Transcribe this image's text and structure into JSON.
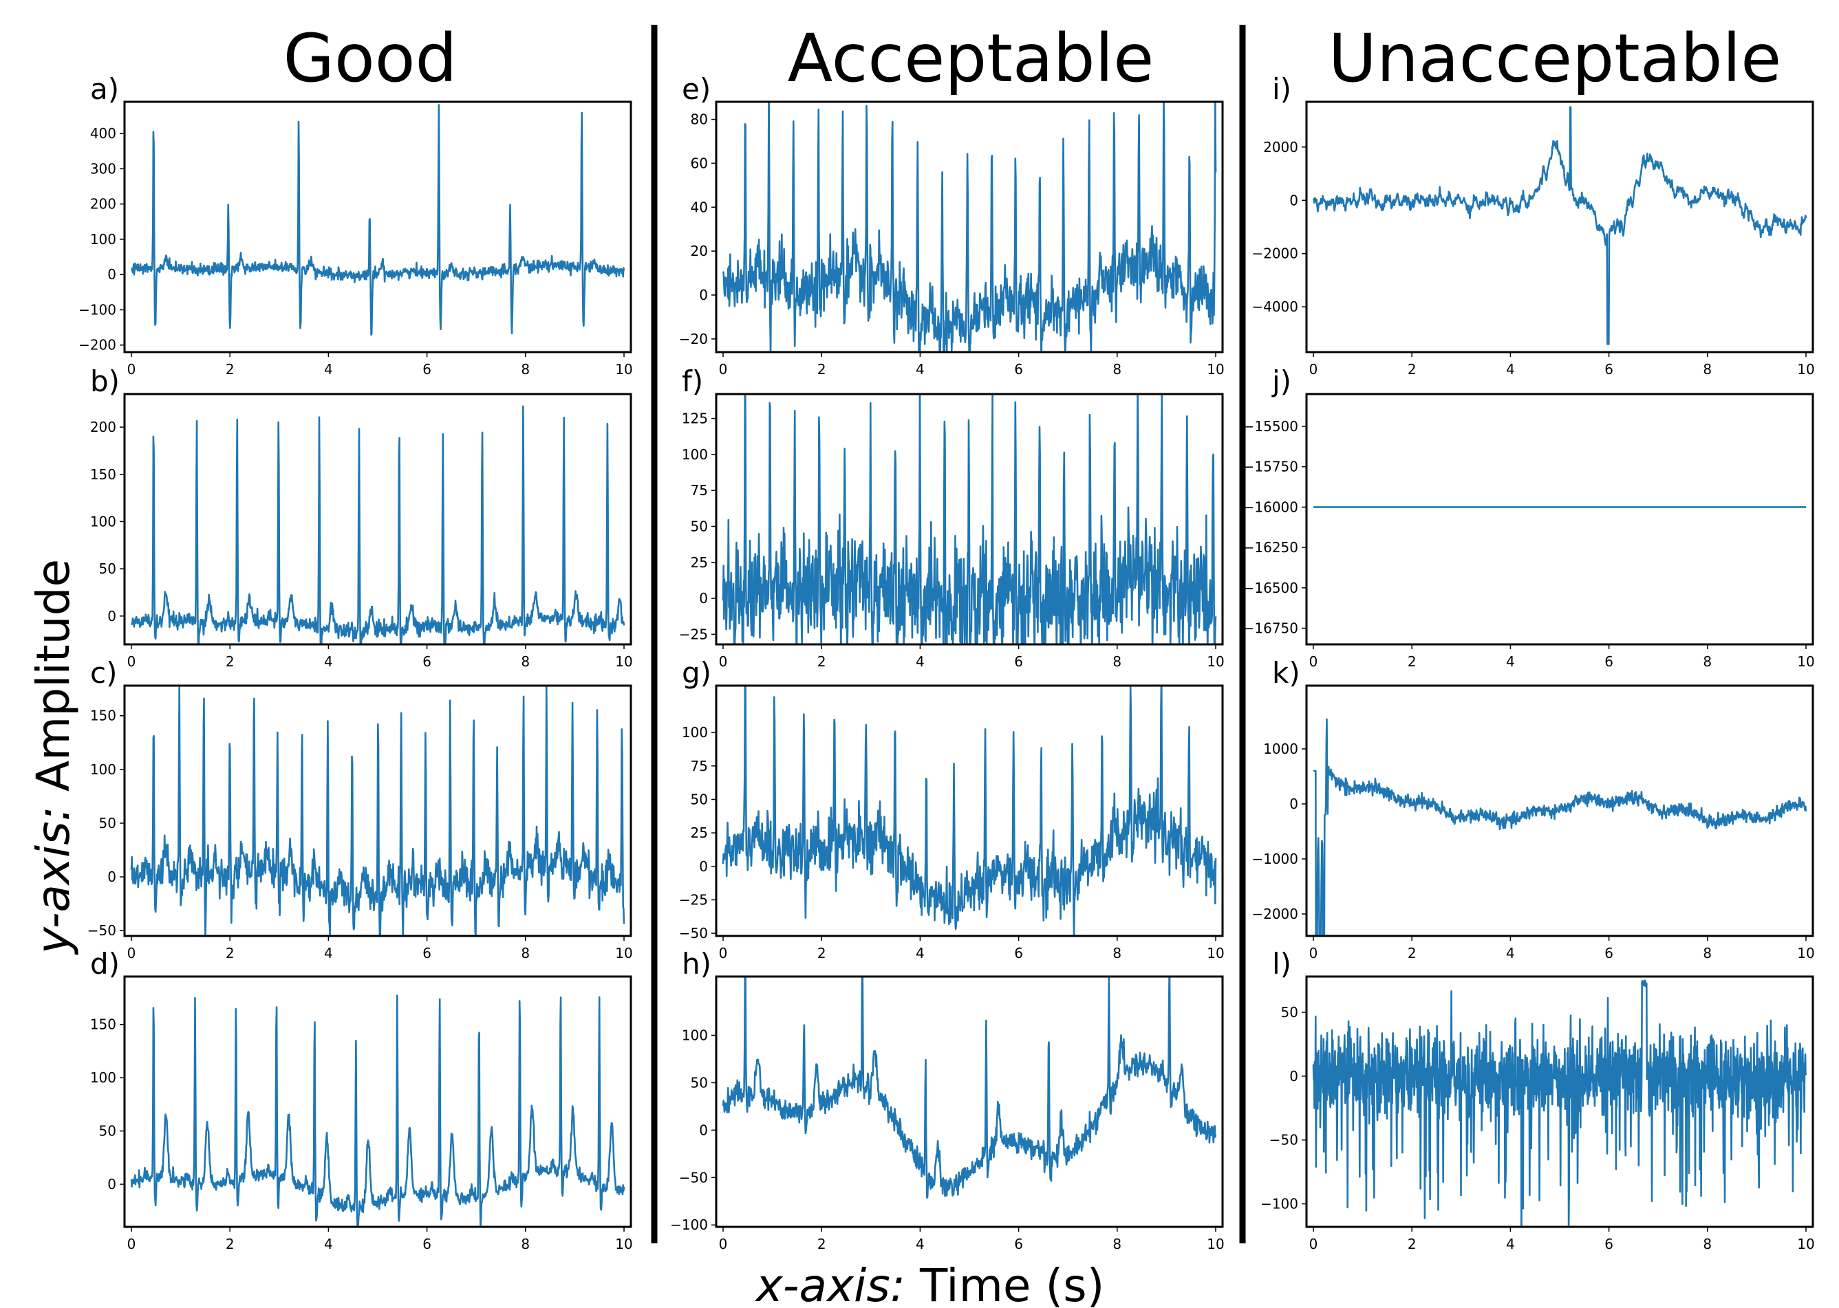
{
  "figure": {
    "column_titles": [
      "Good",
      "Acceptable",
      "Unacceptable"
    ],
    "ylabel_italic": "y-axis:",
    "ylabel_rest": "Amplitude",
    "xlabel_italic": "x-axis:",
    "xlabel_rest": "Time (s)",
    "line_color": "#1f77b4"
  },
  "chart_data": [
    {
      "panel": "a)",
      "type": "line",
      "column": "Good",
      "xlim": [
        0,
        10
      ],
      "ylim": [
        -220,
        490
      ],
      "yticks": [
        -200,
        -100,
        0,
        100,
        200,
        300,
        400
      ],
      "xticks": [
        0,
        2,
        4,
        6,
        8,
        10
      ],
      "signal": "ecg",
      "signal_params": {
        "hr": 42,
        "r": [
          430,
          180,
          430,
          190,
          480,
          190,
          470,
          180,
          450,
          160,
          460,
          180,
          450
        ],
        "noise": 8,
        "wander": 10,
        "s_depth": -170,
        "offset": 10,
        "t_amp": 25
      }
    },
    {
      "panel": "b)",
      "type": "line",
      "column": "Good",
      "xlim": [
        0,
        10
      ],
      "ylim": [
        -30,
        235
      ],
      "yticks": [
        0,
        50,
        100,
        150,
        200
      ],
      "xticks": [
        0,
        2,
        4,
        6,
        8,
        10
      ],
      "signal": "ecg",
      "signal_params": {
        "hr": 72,
        "r": [
          220,
          213,
          222,
          225,
          230,
          213,
          220,
          213,
          223,
          225,
          213
        ],
        "noise": 4,
        "wander": 5,
        "s_depth": -20,
        "offset": -10,
        "t_amp": 25
      }
    },
    {
      "panel": "c)",
      "type": "line",
      "column": "Good",
      "xlim": [
        0,
        10
      ],
      "ylim": [
        -55,
        178
      ],
      "yticks": [
        -50,
        0,
        50,
        100,
        150
      ],
      "xticks": [
        0,
        2,
        4,
        6,
        8,
        10
      ],
      "signal": "ecg",
      "signal_params": {
        "hr": 120,
        "r": [
          152,
          175,
          170,
          130,
          170,
          125,
          155,
          175,
          150,
          175,
          165,
          150,
          175,
          170,
          130,
          175,
          165,
          160,
          170,
          150
        ],
        "noise": 8,
        "wander": 10,
        "s_depth": -35,
        "offset": -5,
        "t_amp": 20
      }
    },
    {
      "panel": "d)",
      "type": "line",
      "column": "Good",
      "xlim": [
        0,
        10
      ],
      "ylim": [
        -40,
        195
      ],
      "yticks": [
        0,
        50,
        100,
        150
      ],
      "xticks": [
        0,
        2,
        4,
        6,
        8,
        10
      ],
      "signal": "ecg",
      "signal_params": {
        "hr": 74,
        "r": [
          175,
          178,
          172,
          175,
          175,
          155,
          190,
          192,
          178,
          175,
          172,
          172,
          175
        ],
        "noise": 3,
        "wander": 12,
        "s_depth": -25,
        "offset": -5,
        "t_amp": 60
      }
    },
    {
      "panel": "e)",
      "type": "line",
      "column": "Acceptable",
      "xlim": [
        0,
        10
      ],
      "ylim": [
        -26,
        88
      ],
      "yticks": [
        -20,
        0,
        20,
        40,
        60,
        80
      ],
      "xticks": [
        0,
        2,
        4,
        6,
        8,
        10
      ],
      "signal": "ecg",
      "signal_params": {
        "hr": 120,
        "r": [
          82,
          80,
          78,
          76,
          75,
          78,
          80,
          76,
          74,
          78,
          80,
          76,
          75,
          78,
          80,
          74,
          76,
          80,
          76,
          80
        ],
        "noise": 6,
        "wander": 10,
        "s_depth": -18,
        "offset": -2,
        "t_amp": 8
      }
    },
    {
      "panel": "f)",
      "type": "line",
      "column": "Acceptable",
      "xlim": [
        0,
        10
      ],
      "ylim": [
        -32,
        142
      ],
      "yticks": [
        -25,
        0,
        25,
        50,
        75,
        100,
        125
      ],
      "xticks": [
        0,
        2,
        4,
        6,
        8,
        10
      ],
      "signal": "ecg",
      "signal_params": {
        "hr": 120,
        "r": [
          130,
          125,
          128,
          135,
          120,
          130,
          135,
          122,
          125,
          130,
          128,
          120,
          125,
          130,
          125,
          120,
          125,
          130,
          128,
          125
        ],
        "noise": 18,
        "wander": 6,
        "s_depth": -25,
        "offset": 0,
        "t_amp": 15
      }
    },
    {
      "panel": "g)",
      "type": "line",
      "column": "Acceptable",
      "xlim": [
        0,
        10
      ],
      "ylim": [
        -52,
        135
      ],
      "yticks": [
        -50,
        -25,
        0,
        25,
        50,
        75,
        100
      ],
      "xticks": [
        0,
        2,
        4,
        6,
        8,
        10
      ],
      "signal": "ecg",
      "signal_params": {
        "hr": 100,
        "r": [
          130,
          118,
          110,
          115,
          110,
          120,
          110,
          112,
          115,
          110,
          112,
          100,
          110,
          105,
          115,
          110,
          95,
          100,
          90,
          80
        ],
        "noise": 10,
        "wander": 20,
        "s_depth": -20,
        "offset": 0,
        "t_amp": 10
      }
    },
    {
      "panel": "h)",
      "type": "line",
      "column": "Acceptable",
      "xlim": [
        0,
        10
      ],
      "ylim": [
        -102,
        162
      ],
      "yticks": [
        -100,
        -50,
        0,
        50,
        100
      ],
      "xticks": [
        0,
        2,
        4,
        6,
        8,
        10
      ],
      "signal": "ecg",
      "signal_params": {
        "hr": 50,
        "r": [
          140,
          110,
          145,
          120,
          140,
          135,
          125,
          135,
          150,
          145,
          120
        ],
        "noise": 6,
        "wander": 45,
        "s_depth": -20,
        "offset": 0,
        "t_amp": 40
      }
    },
    {
      "panel": "i)",
      "type": "line",
      "column": "Unacceptable",
      "xlim": [
        0,
        10
      ],
      "ylim": [
        -5700,
        3700
      ],
      "yticks": [
        -4000,
        -2000,
        0,
        2000
      ],
      "xticks": [
        0,
        2,
        4,
        6,
        8,
        10
      ],
      "signal": "noisy_i"
    },
    {
      "panel": "j)",
      "type": "line",
      "column": "Unacceptable",
      "xlim": [
        0,
        10
      ],
      "ylim": [
        -16850,
        -15300
      ],
      "yticks": [
        -16750,
        -16500,
        -16250,
        -16000,
        -15750,
        -15500
      ],
      "xticks": [
        0,
        2,
        4,
        6,
        8,
        10
      ],
      "signal": "flat",
      "flat_value": -16000
    },
    {
      "panel": "k)",
      "type": "line",
      "column": "Unacceptable",
      "xlim": [
        0,
        10
      ],
      "ylim": [
        -2400,
        2150
      ],
      "yticks": [
        -2000,
        -1000,
        0,
        1000
      ],
      "xticks": [
        0,
        2,
        4,
        6,
        8,
        10
      ],
      "signal": "noisy_k"
    },
    {
      "panel": "l)",
      "type": "line",
      "column": "Unacceptable",
      "xlim": [
        0,
        10
      ],
      "ylim": [
        -118,
        78
      ],
      "yticks": [
        -100,
        -50,
        0,
        50
      ],
      "xticks": [
        0,
        2,
        4,
        6,
        8,
        10
      ],
      "signal": "noisy_l"
    }
  ]
}
